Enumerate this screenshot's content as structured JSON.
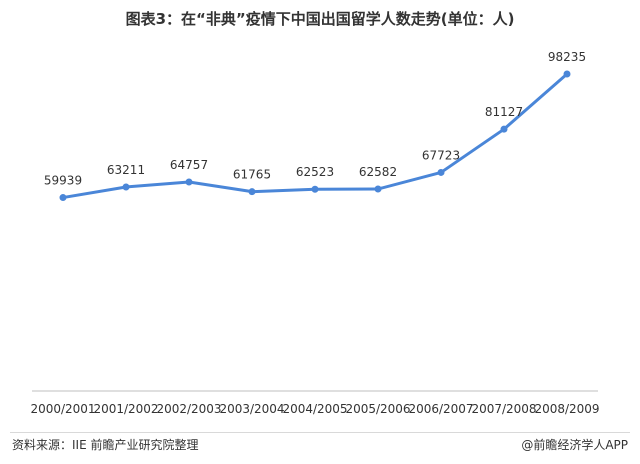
{
  "title": "图表3：在“非典”疫情下中国出国留学人数走势(单位：人)",
  "footer": {
    "source": "资料来源：IIE 前瞻产业研究院整理",
    "brand": "@前瞻经济学人APP"
  },
  "colors": {
    "line": "#4a86d8",
    "axis": "#bfbfbf"
  },
  "chart_data": {
    "type": "line",
    "categories": [
      "2000/2001",
      "2001/2002",
      "2002/2003",
      "2003/2004",
      "2004/2005",
      "2005/2006",
      "2006/2007",
      "2007/2008",
      "2008/2009"
    ],
    "series": [
      {
        "values": [
          59939,
          63211,
          64757,
          61765,
          62523,
          62582,
          67723,
          81127,
          98235
        ]
      }
    ],
    "data_labels": [
      "59939",
      "63211",
      "64757",
      "61765",
      "62523",
      "62582",
      "67723",
      "81127",
      "98235"
    ],
    "xlabel": "",
    "ylabel": "",
    "ylim": [
      0,
      110000
    ],
    "grid": false,
    "legend": "none"
  }
}
